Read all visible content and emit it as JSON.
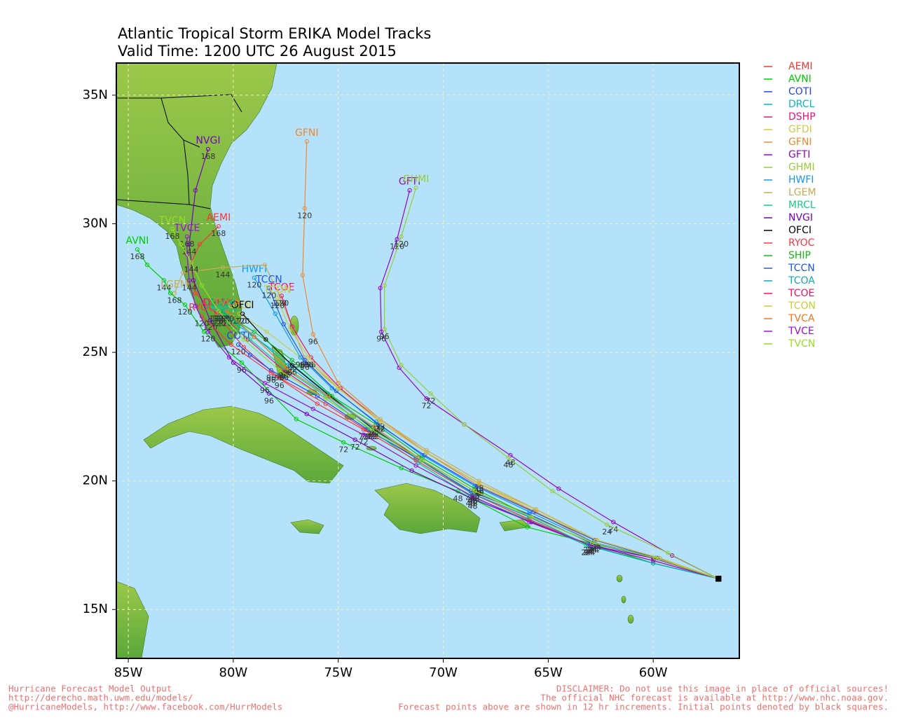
{
  "map": {
    "title": "Atlantic Tropical Storm ERIKA Model Tracks",
    "subtitle": "Valid Time: 1200 UTC 26 August 2015",
    "xlim": [
      -85.57,
      -55.9
    ],
    "ylim": [
      13.1,
      36.25
    ],
    "xticks": [
      {
        "value": -85,
        "label": "85W"
      },
      {
        "value": -80,
        "label": "80W"
      },
      {
        "value": -75,
        "label": "75W"
      },
      {
        "value": -70,
        "label": "70W"
      },
      {
        "value": -65,
        "label": "65W"
      },
      {
        "value": -60,
        "label": "60W"
      }
    ],
    "yticks": [
      {
        "value": 15,
        "label": "15N"
      },
      {
        "value": 20,
        "label": "20N"
      },
      {
        "value": 25,
        "label": "25N"
      },
      {
        "value": 30,
        "label": "30N"
      },
      {
        "value": 35,
        "label": "35N"
      }
    ],
    "grid": true,
    "tracks": [
      {
        "name": "AEMI",
        "color": "#ff3333",
        "hours": [
          0,
          12,
          24,
          36,
          48,
          60,
          72,
          84,
          96,
          108,
          120,
          132,
          144,
          156,
          168
        ],
        "lon": [
          -56.9,
          -60.0,
          -63.0,
          -65.9,
          -68.6,
          -71.2,
          -73.7,
          -75.6,
          -77.8,
          -79.5,
          -80.8,
          -81.8,
          -82.0,
          -81.6,
          -80.7
        ],
        "lat": [
          16.2,
          16.9,
          17.5,
          18.5,
          19.5,
          20.9,
          22.0,
          23.0,
          24.0,
          25.2,
          26.5,
          27.3,
          28.5,
          29.2,
          29.9
        ]
      },
      {
        "name": "AVNI",
        "color": "#00cc00",
        "hours": [
          0,
          12,
          24,
          36,
          48,
          60,
          72,
          84,
          96,
          108,
          120,
          132,
          144,
          156,
          168
        ],
        "lon": [
          -56.9,
          -60.0,
          -63.1,
          -66.0,
          -69.3,
          -72.0,
          -74.75,
          -77.0,
          -79.6,
          -81.4,
          -82.3,
          -83.0,
          -83.3,
          -84.1,
          -84.57
        ],
        "lat": [
          16.2,
          16.8,
          17.6,
          18.2,
          19.6,
          20.5,
          21.5,
          22.4,
          24.6,
          25.8,
          26.85,
          27.3,
          27.8,
          28.4,
          29.0
        ]
      },
      {
        "name": "COTI",
        "color": "#2244ee",
        "hours": [
          0,
          12,
          24,
          36,
          48,
          60,
          72,
          84,
          96,
          108,
          120
        ],
        "lon": [
          -56.9,
          -60.0,
          -63.0,
          -65.9,
          -68.7,
          -71.3,
          -73.6,
          -76.0,
          -78.2,
          -79.2,
          -79.76
        ],
        "lat": [
          16.2,
          17.0,
          17.6,
          18.7,
          19.6,
          20.9,
          22.0,
          23.3,
          24.3,
          24.9,
          25.3
        ]
      },
      {
        "name": "DRCL",
        "color": "#00bbbb",
        "hours": [
          0,
          12,
          24,
          36,
          48,
          60,
          72,
          84,
          96,
          108,
          120
        ],
        "lon": [
          -56.9,
          -60.0,
          -63.1,
          -65.9,
          -68.6,
          -71.1,
          -73.4,
          -75.5,
          -77.3,
          -79.0,
          -80.4
        ],
        "lat": [
          16.2,
          16.8,
          17.5,
          18.6,
          19.5,
          20.8,
          22.1,
          23.4,
          24.6,
          25.6,
          26.4
        ]
      },
      {
        "name": "DSHP",
        "color": "#ee1177",
        "hours": [
          0,
          12,
          24,
          36,
          48,
          60,
          72,
          84,
          96,
          108,
          120
        ],
        "lon": [
          -56.9,
          -59.9,
          -62.9,
          -65.8,
          -68.5,
          -71.0,
          -73.4,
          -75.6,
          -77.6,
          -79.3,
          -80.8
        ],
        "lat": [
          16.2,
          17.0,
          17.6,
          18.6,
          19.6,
          20.8,
          22.0,
          23.2,
          24.3,
          25.5,
          26.6
        ]
      },
      {
        "name": "GFDI",
        "color": "#cccc44",
        "hours": [
          0,
          12,
          24,
          36,
          48,
          60,
          72,
          84,
          96,
          108,
          120
        ],
        "lon": [
          -56.9,
          -59.8,
          -62.7,
          -65.6,
          -68.3,
          -70.8,
          -73.0,
          -75.0,
          -76.8,
          -78.4,
          -79.7
        ],
        "lat": [
          16.2,
          17.0,
          17.7,
          18.8,
          19.9,
          21.1,
          22.3,
          23.6,
          24.8,
          25.8,
          26.5
        ]
      },
      {
        "name": "GFNI",
        "color": "#ee8833",
        "hours": [
          0,
          12,
          24,
          36,
          48,
          60,
          72,
          84,
          96,
          108,
          120,
          132
        ],
        "lon": [
          -56.9,
          -59.9,
          -62.8,
          -65.6,
          -68.3,
          -70.8,
          -73.0,
          -75.0,
          -76.2,
          -76.7,
          -76.6,
          -76.5
        ],
        "lat": [
          16.2,
          17.0,
          17.6,
          18.8,
          19.8,
          21.1,
          22.4,
          23.8,
          25.7,
          28.0,
          30.6,
          33.2
        ]
      },
      {
        "name": "GFTI",
        "color": "#9900cc",
        "hours": [
          0,
          12,
          24,
          36,
          48,
          60,
          72,
          84,
          96,
          108,
          120,
          132
        ],
        "lon": [
          -56.9,
          -59.1,
          -61.9,
          -64.5,
          -66.8,
          -69.0,
          -70.8,
          -72.1,
          -72.95,
          -73.0,
          -72.2,
          -71.6
        ],
        "lat": [
          16.2,
          17.1,
          18.4,
          19.7,
          21.0,
          22.2,
          23.2,
          24.4,
          25.8,
          27.5,
          29.4,
          31.3
        ]
      },
      {
        "name": "GHMI",
        "color": "#99cc33",
        "hours": [
          0,
          12,
          24,
          36,
          48,
          60,
          72,
          84,
          96,
          108,
          120,
          132
        ],
        "lon": [
          -56.9,
          -59.3,
          -62.2,
          -64.8,
          -66.9,
          -69.0,
          -70.6,
          -72.0,
          -72.8,
          -72.8,
          -72.0,
          -71.3
        ],
        "lat": [
          16.2,
          17.2,
          18.3,
          19.6,
          20.9,
          22.2,
          23.4,
          24.5,
          25.9,
          27.6,
          29.5,
          31.4
        ]
      },
      {
        "name": "HWFI",
        "color": "#1199ee",
        "hours": [
          0,
          12,
          24,
          36,
          48,
          60,
          72,
          84,
          96,
          108,
          120
        ],
        "lon": [
          -56.9,
          -59.8,
          -62.8,
          -65.9,
          -68.5,
          -71.0,
          -73.2,
          -75.3,
          -76.8,
          -78.0,
          -79.0
        ],
        "lat": [
          16.2,
          17.0,
          17.6,
          18.8,
          19.8,
          21.0,
          22.3,
          23.6,
          24.8,
          26.5,
          27.9
        ]
      },
      {
        "name": "LGEM",
        "color": "#ccaa55",
        "hours": [
          0,
          12,
          24,
          36,
          48,
          60,
          72,
          84,
          96,
          108,
          120,
          132,
          144,
          156,
          168
        ],
        "lon": [
          -56.9,
          -59.8,
          -62.7,
          -65.6,
          -68.3,
          -70.8,
          -73.0,
          -75.0,
          -76.6,
          -77.2,
          -77.8,
          -78.5,
          -80.5,
          -82.4,
          -82.8
        ],
        "lat": [
          16.2,
          17.0,
          17.7,
          18.9,
          20.0,
          21.2,
          22.4,
          23.6,
          24.8,
          26.0,
          27.2,
          28.4,
          28.3,
          28.1,
          27.3
        ]
      },
      {
        "name": "MRCL",
        "color": "#11cc88",
        "hours": [
          0,
          12,
          24,
          36,
          48,
          60,
          72,
          84,
          96,
          108,
          120
        ],
        "lon": [
          -56.9,
          -60.0,
          -63.2,
          -66.0,
          -68.7,
          -71.2,
          -73.5,
          -75.6,
          -77.6,
          -79.2,
          -80.7
        ],
        "lat": [
          16.2,
          16.8,
          17.5,
          18.5,
          19.4,
          20.7,
          22.0,
          23.3,
          24.4,
          25.5,
          26.4
        ]
      },
      {
        "name": "NVGI",
        "color": "#7700bb",
        "hours": [
          0,
          12,
          24,
          36,
          48,
          60,
          72,
          84,
          96,
          108,
          120,
          132,
          144,
          156,
          168
        ],
        "lon": [
          -56.9,
          -60.0,
          -63.0,
          -65.8,
          -68.6,
          -71.5,
          -74.2,
          -76.5,
          -78.3,
          -80.0,
          -81.1,
          -81.9,
          -82.1,
          -81.8,
          -81.2
        ],
        "lat": [
          16.2,
          17.0,
          17.5,
          18.4,
          19.3,
          20.4,
          21.6,
          22.6,
          23.4,
          24.6,
          26.25,
          27.8,
          29.2,
          31.3,
          32.9
        ]
      },
      {
        "name": "OFCI",
        "color": "#000000",
        "hours": [
          0,
          12,
          24,
          36,
          48,
          60,
          72,
          84,
          96,
          108,
          120
        ],
        "lon": [
          -56.9,
          -59.9,
          -62.9,
          -65.8,
          -68.5,
          -71.0,
          -73.3,
          -75.4,
          -77.2,
          -78.45,
          -79.56
        ],
        "lat": [
          16.2,
          17.0,
          17.6,
          18.6,
          19.6,
          20.8,
          22.0,
          23.3,
          24.5,
          25.5,
          26.5
        ]
      },
      {
        "name": "RYOC",
        "color": "#ff3344",
        "hours": [
          0,
          12,
          24,
          36,
          48,
          60,
          72,
          84,
          96,
          108,
          120
        ],
        "lon": [
          -56.9,
          -60.0,
          -63.0,
          -65.9,
          -68.6,
          -71.3,
          -73.8,
          -76.0,
          -78.2,
          -80.1,
          -81.5
        ],
        "lat": [
          16.2,
          16.9,
          17.5,
          18.5,
          19.5,
          20.8,
          22.0,
          23.0,
          24.2,
          25.3,
          26.4
        ]
      },
      {
        "name": "SHIP",
        "color": "#11bb11",
        "hours": [
          0,
          12,
          24,
          36,
          48,
          60,
          72,
          84,
          96,
          108,
          120
        ],
        "lon": [
          -56.9,
          -59.9,
          -62.9,
          -65.8,
          -68.5,
          -71.0,
          -73.2,
          -75.3,
          -77.2,
          -79.0,
          -80.6
        ],
        "lat": [
          16.2,
          17.0,
          17.6,
          18.6,
          19.7,
          20.9,
          22.2,
          23.3,
          24.7,
          25.8,
          26.6
        ]
      },
      {
        "name": "TCCN",
        "color": "#2255ee",
        "hours": [
          0,
          12,
          24,
          36,
          48,
          60,
          72,
          84,
          96,
          108,
          120
        ],
        "lon": [
          -56.9,
          -59.8,
          -62.8,
          -65.7,
          -68.4,
          -70.9,
          -73.1,
          -75.1,
          -76.6,
          -77.6,
          -78.3
        ],
        "lat": [
          16.2,
          17.0,
          17.7,
          18.8,
          19.8,
          21.0,
          22.2,
          23.5,
          24.7,
          26.1,
          27.5
        ]
      },
      {
        "name": "TCOA",
        "color": "#11aaaa",
        "hours": [
          0,
          12,
          24,
          36,
          48,
          60,
          72,
          84,
          96,
          108,
          120
        ],
        "lon": [
          -56.9,
          -60.0,
          -63.1,
          -65.9,
          -68.6,
          -71.1,
          -73.4,
          -75.5,
          -77.4,
          -79.1,
          -80.5
        ],
        "lat": [
          16.2,
          16.8,
          17.5,
          18.6,
          19.5,
          20.8,
          22.1,
          23.3,
          24.5,
          25.7,
          26.6
        ]
      },
      {
        "name": "TCOE",
        "color": "#ee1166",
        "hours": [
          0,
          12,
          24,
          36,
          48,
          60,
          72,
          84,
          96,
          108,
          120
        ],
        "lon": [
          -56.9,
          -59.7,
          -62.7,
          -65.6,
          -68.3,
          -70.8,
          -73.0,
          -74.9,
          -76.3,
          -77.2,
          -77.7
        ],
        "lat": [
          16.2,
          17.0,
          17.7,
          18.9,
          19.9,
          21.1,
          22.3,
          23.6,
          24.8,
          26.0,
          27.2
        ]
      },
      {
        "name": "TCON",
        "color": "#cccc33",
        "hours": [
          0,
          12,
          24,
          36,
          48,
          60,
          72,
          84,
          96,
          108,
          120
        ],
        "lon": [
          -56.9,
          -59.7,
          -62.7,
          -65.6,
          -68.3,
          -70.8,
          -73.0,
          -75.0,
          -76.4,
          -77.3,
          -77.9
        ],
        "lat": [
          16.2,
          17.0,
          17.7,
          18.9,
          19.9,
          21.1,
          22.3,
          23.6,
          24.8,
          25.9,
          27.1
        ]
      },
      {
        "name": "TVCA",
        "color": "#ee7722",
        "hours": [
          0,
          12,
          24,
          36,
          48,
          60,
          72,
          84,
          96,
          108,
          120
        ],
        "lon": [
          -56.9,
          -59.9,
          -62.9,
          -65.8,
          -68.5,
          -71.0,
          -73.3,
          -75.5,
          -77.5,
          -79.0,
          -80.3
        ],
        "lat": [
          16.2,
          17.0,
          17.6,
          18.6,
          19.6,
          20.8,
          22.1,
          23.3,
          24.4,
          25.6,
          26.6
        ]
      },
      {
        "name": "TVCE",
        "color": "#9911cc",
        "hours": [
          0,
          12,
          24,
          36,
          48,
          60,
          72,
          84,
          96,
          108,
          120,
          132,
          144,
          156,
          168
        ],
        "lon": [
          -56.9,
          -60.0,
          -63.0,
          -65.9,
          -68.6,
          -71.3,
          -73.8,
          -76.2,
          -78.5,
          -80.2,
          -81.2,
          -81.8,
          -82.1,
          -82.2,
          -82.2
        ],
        "lat": [
          16.2,
          16.9,
          17.5,
          18.4,
          19.4,
          20.6,
          21.8,
          22.8,
          23.8,
          24.8,
          25.8,
          26.8,
          27.8,
          28.8,
          29.5
        ]
      },
      {
        "name": "TVCN",
        "color": "#99dd22",
        "hours": [
          0,
          12,
          24,
          36,
          48,
          60,
          72,
          84,
          96,
          108,
          120,
          132,
          144,
          156,
          168
        ],
        "lon": [
          -56.9,
          -59.9,
          -62.9,
          -65.8,
          -68.5,
          -71.0,
          -73.4,
          -75.6,
          -77.8,
          -79.5,
          -80.7,
          -81.5,
          -82.0,
          -82.5,
          -82.9
        ],
        "lat": [
          16.2,
          17.0,
          17.6,
          18.6,
          19.6,
          20.8,
          22.0,
          23.2,
          24.3,
          25.5,
          26.6,
          27.6,
          28.5,
          29.2,
          29.8
        ]
      }
    ],
    "footer_left": [
      "Hurricane Forecast Model Output",
      "http://derecho.math.uwm.edu/models/",
      "@HurricaneModels, http://www.facebook.com/HurrModels"
    ],
    "footer_right": [
      "DISCLAIMER: Do not use this image in place of official sources!",
      "The official NHC forecast is available at http://www.nhc.noaa.gov.",
      "Forecast points above are shown in 12 hr increments. Initial points denoted by black squares."
    ]
  }
}
